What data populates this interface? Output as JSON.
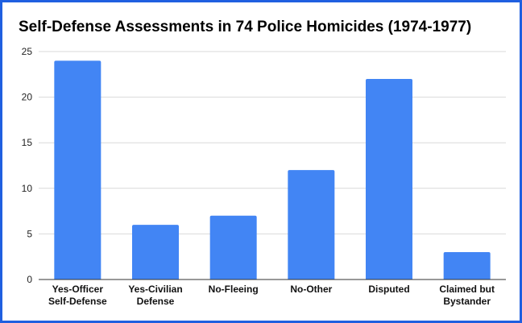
{
  "chart_data": {
    "type": "bar",
    "title": "Self-Defense Assessments in 74 Police Homicides (1974-1977)",
    "xlabel": "",
    "ylabel": "",
    "categories": [
      [
        "Yes-Officer",
        "Self-Defense"
      ],
      [
        "Yes-Civilian",
        "Defense"
      ],
      [
        "No-Fleeing"
      ],
      [
        "No-Other"
      ],
      [
        "Disputed"
      ],
      [
        "Claimed but",
        "Bystander"
      ]
    ],
    "values": [
      24,
      6,
      7,
      12,
      22,
      3
    ],
    "ylim": [
      0,
      25
    ],
    "yticks": [
      "0",
      "5",
      "10",
      "15",
      "20",
      "25"
    ],
    "grid": true,
    "legend": "none",
    "bar_color": "#4285f4",
    "grid_color": "#d9d9d9",
    "frame_color": "#1f5fe0"
  }
}
